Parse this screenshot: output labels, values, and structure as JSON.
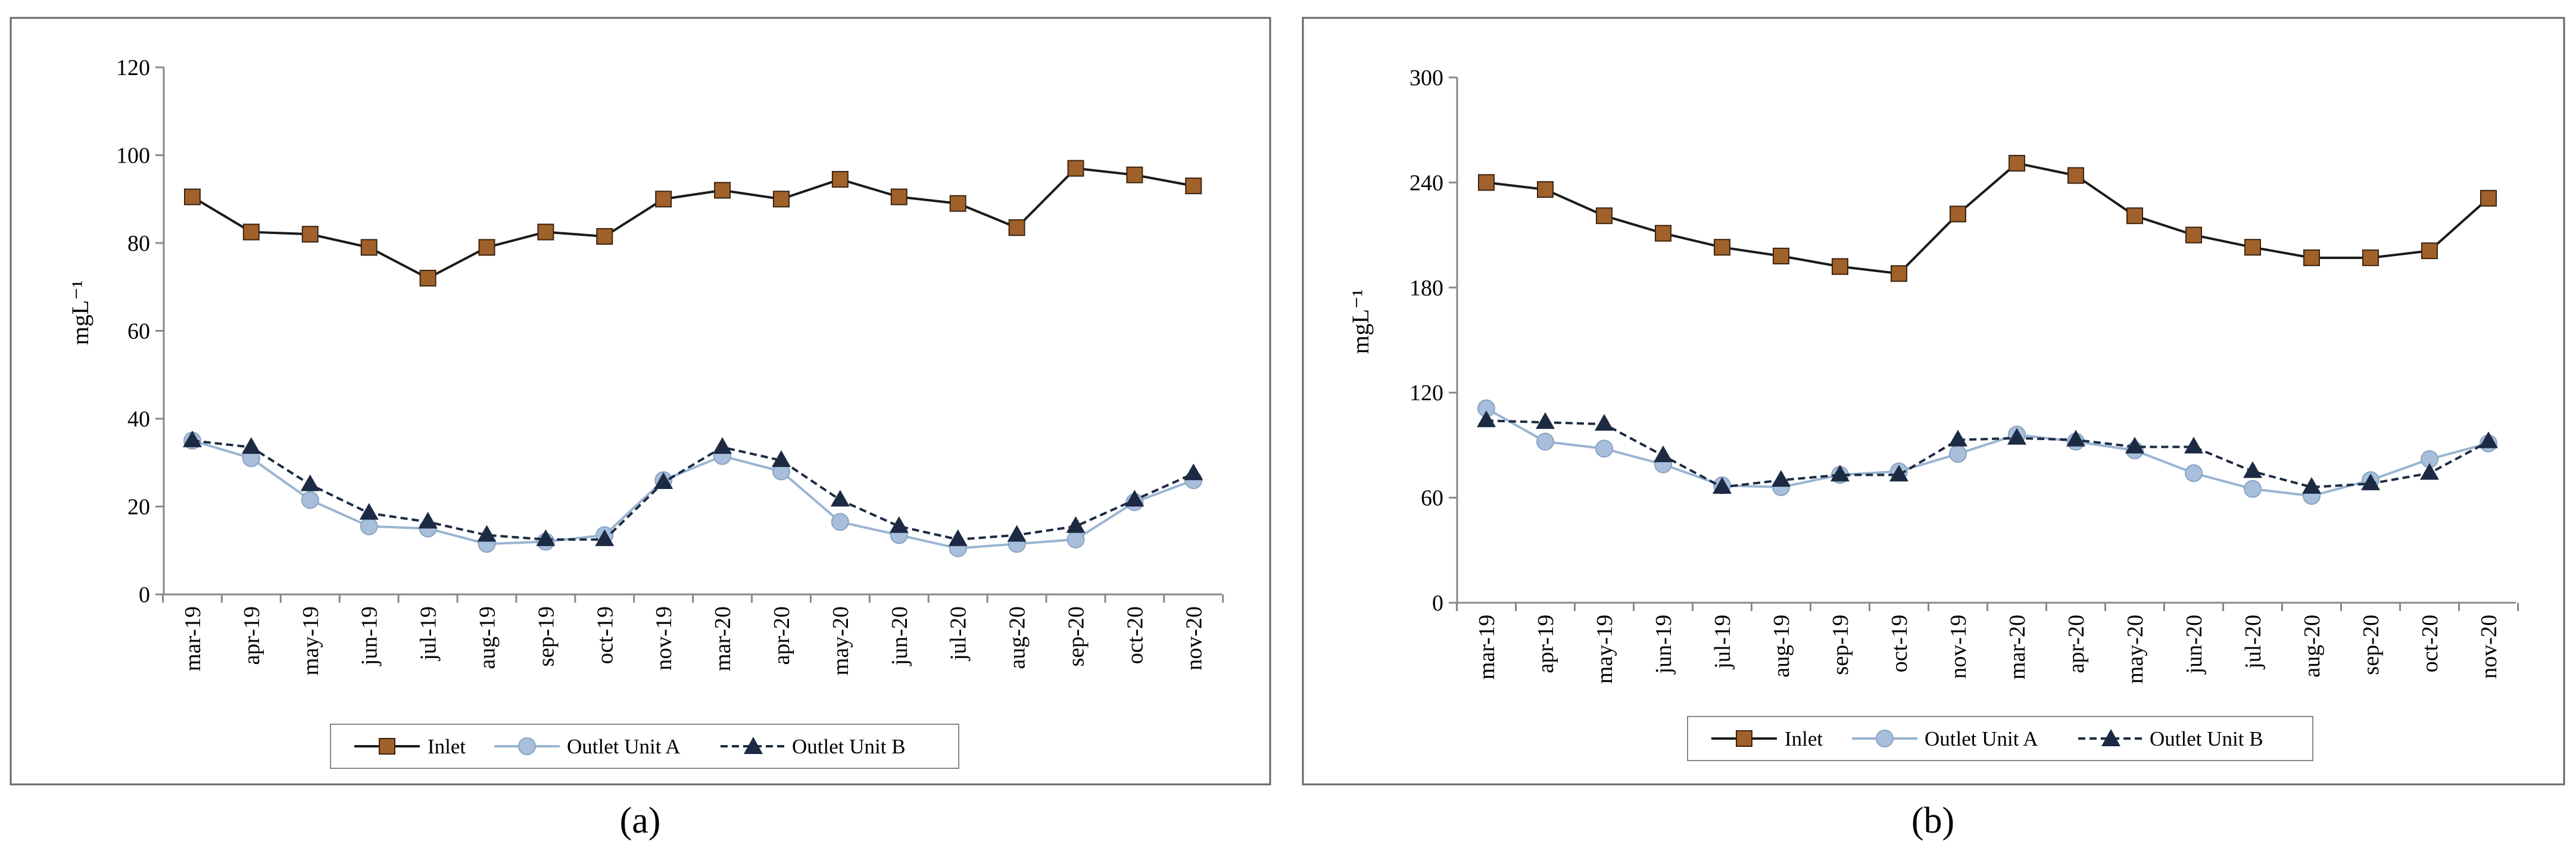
{
  "figure": {
    "panel_labels": [
      "(a)",
      "(b)"
    ],
    "colors": {
      "inlet_line": "#1a1a1a",
      "inlet_marker": "#a0612a",
      "outlet_a_line": "#9ab4d2",
      "outlet_a_marker": "#a7bfdb",
      "outlet_b_line": "#1c2a43",
      "outlet_b_marker": "#1c2a43",
      "frame": "#666666",
      "axis": "#888888"
    }
  },
  "chart_data": [
    {
      "type": "line",
      "panel": "(a)",
      "ylabel": "mgL⁻¹",
      "xlabel": "",
      "ylim": [
        0,
        120
      ],
      "yticks": [
        0,
        20,
        40,
        60,
        80,
        100,
        120
      ],
      "categories": [
        "mar-19",
        "apr-19",
        "may-19",
        "jun-19",
        "jul-19",
        "aug-19",
        "sep-19",
        "oct-19",
        "nov-19",
        "mar-20",
        "apr-20",
        "may-20",
        "jun-20",
        "jul-20",
        "aug-20",
        "sep-20",
        "oct-20",
        "nov-20"
      ],
      "legend": [
        "Inlet",
        "Outlet Unit A",
        "Outlet Unit B"
      ],
      "series": [
        {
          "name": "Inlet",
          "values": [
            90.5,
            82.5,
            82,
            79,
            72,
            79,
            82.5,
            81.5,
            90,
            92,
            90,
            94.5,
            90.5,
            89,
            83.5,
            97,
            95.5,
            93
          ]
        },
        {
          "name": "Outlet Unit A",
          "values": [
            35,
            31,
            21.5,
            15.5,
            15,
            11.5,
            12,
            13.5,
            26,
            31.5,
            28,
            16.5,
            13.5,
            10.5,
            11.5,
            12.5,
            21,
            26
          ]
        },
        {
          "name": "Outlet Unit B",
          "values": [
            35,
            33.5,
            25,
            18.5,
            16.5,
            13.5,
            12.5,
            12.5,
            25.5,
            33.5,
            30.5,
            21.5,
            15.5,
            12.5,
            13.5,
            15.5,
            21.5,
            27.5
          ]
        }
      ]
    },
    {
      "type": "line",
      "panel": "(b)",
      "ylabel": "mgL⁻¹",
      "xlabel": "",
      "ylim": [
        0,
        300
      ],
      "yticks": [
        0,
        60,
        120,
        180,
        240,
        300
      ],
      "categories": [
        "mar-19",
        "apr-19",
        "may-19",
        "jun-19",
        "jul-19",
        "aug-19",
        "sep-19",
        "oct-19",
        "nov-19",
        "mar-20",
        "apr-20",
        "may-20",
        "jun-20",
        "jul-20",
        "aug-20",
        "sep-20",
        "oct-20",
        "nov-20"
      ],
      "legend": [
        "Inlet",
        "Outlet Unit A",
        "Outlet Unit B"
      ],
      "series": [
        {
          "name": "Inlet",
          "values": [
            240,
            236,
            221,
            211,
            203,
            198,
            192,
            188,
            222,
            251,
            244,
            221,
            210,
            203,
            197,
            197,
            201,
            231
          ]
        },
        {
          "name": "Outlet Unit A",
          "values": [
            111,
            92,
            88,
            79,
            67,
            66,
            73,
            75,
            85,
            96,
            92,
            87,
            74,
            65,
            61,
            70,
            82,
            91
          ]
        },
        {
          "name": "Outlet Unit B",
          "values": [
            104,
            103,
            102,
            84,
            66,
            70,
            73,
            73,
            93,
            94,
            93,
            89,
            89,
            75,
            66,
            68,
            74,
            92
          ]
        }
      ]
    }
  ]
}
